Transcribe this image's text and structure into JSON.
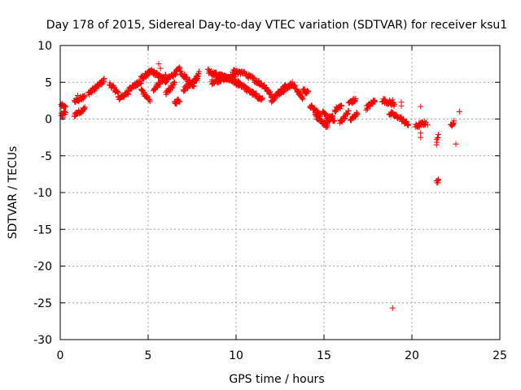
{
  "chart_data": {
    "type": "scatter",
    "title": "Day 178 of 2015, Sidereal Day-to-day VTEC variation (SDTVAR) for receiver ksu1",
    "xlabel": "GPS time / hours",
    "ylabel": "SDTVAR / TECUs",
    "xlim": [
      0,
      25
    ],
    "ylim": [
      -30,
      10
    ],
    "xticks": [
      0,
      5,
      10,
      15,
      20,
      25
    ],
    "yticks": [
      -30,
      -25,
      -20,
      -15,
      -10,
      -5,
      0,
      5,
      10
    ],
    "grid": true,
    "marker": "+",
    "color": "#ff0000",
    "segments": [
      {
        "x": [
          0.05,
          0.3
        ],
        "y": [
          1.9,
          1.5
        ]
      },
      {
        "x": [
          0.05,
          0.3
        ],
        "y": [
          0.6,
          0.9
        ]
      },
      {
        "x": [
          0.8,
          1.4
        ],
        "y": [
          2.4,
          3.0
        ]
      },
      {
        "x": [
          0.8,
          1.4
        ],
        "y": [
          0.6,
          1.4
        ]
      },
      {
        "x": [
          1.6,
          2.0
        ],
        "y": [
          3.5,
          4.2
        ]
      },
      {
        "x": [
          2.0,
          2.5
        ],
        "y": [
          4.2,
          5.3
        ]
      },
      {
        "x": [
          2.8,
          3.3
        ],
        "y": [
          4.8,
          3.5
        ]
      },
      {
        "x": [
          3.3,
          3.9
        ],
        "y": [
          2.8,
          3.6
        ]
      },
      {
        "x": [
          3.9,
          4.6
        ],
        "y": [
          4.2,
          5.0
        ]
      },
      {
        "x": [
          4.6,
          5.1
        ],
        "y": [
          4.0,
          2.5
        ]
      },
      {
        "x": [
          4.6,
          5.2
        ],
        "y": [
          5.5,
          6.5
        ]
      },
      {
        "x": [
          5.2,
          6.0
        ],
        "y": [
          6.5,
          5.2
        ]
      },
      {
        "x": [
          5.3,
          6.0
        ],
        "y": [
          4.0,
          5.8
        ]
      },
      {
        "x": [
          6.0,
          6.8
        ],
        "y": [
          5.2,
          6.8
        ]
      },
      {
        "x": [
          6.0,
          6.5
        ],
        "y": [
          3.5,
          4.8
        ]
      },
      {
        "x": [
          6.5,
          6.8
        ],
        "y": [
          2.2,
          2.6
        ]
      },
      {
        "x": [
          6.8,
          7.6
        ],
        "y": [
          6.5,
          4.5
        ]
      },
      {
        "x": [
          7.0,
          7.8
        ],
        "y": [
          4.0,
          5.5
        ]
      },
      {
        "x": [
          7.6,
          7.9
        ],
        "y": [
          5.0,
          6.2
        ]
      },
      {
        "x": [
          8.4,
          9.5
        ],
        "y": [
          6.5,
          5.5
        ]
      },
      {
        "x": [
          8.6,
          10.0
        ],
        "y": [
          5.0,
          6.0
        ]
      },
      {
        "x": [
          9.0,
          10.2
        ],
        "y": [
          6.0,
          4.8
        ]
      },
      {
        "x": [
          9.8,
          10.5
        ],
        "y": [
          6.4,
          6.2
        ]
      },
      {
        "x": [
          10.0,
          10.5
        ],
        "y": [
          4.8,
          4.5
        ]
      },
      {
        "x": [
          10.5,
          11.5
        ],
        "y": [
          4.2,
          2.6
        ]
      },
      {
        "x": [
          10.6,
          11.6
        ],
        "y": [
          6.0,
          4.5
        ]
      },
      {
        "x": [
          11.6,
          12.0
        ],
        "y": [
          4.5,
          3.2
        ]
      },
      {
        "x": [
          12.0,
          12.8
        ],
        "y": [
          2.5,
          4.5
        ]
      },
      {
        "x": [
          12.4,
          13.2
        ],
        "y": [
          3.5,
          4.8
        ]
      },
      {
        "x": [
          13.2,
          13.8
        ],
        "y": [
          4.8,
          2.8
        ]
      },
      {
        "x": [
          13.8,
          14.1
        ],
        "y": [
          4.0,
          3.5
        ]
      },
      {
        "x": [
          14.2,
          14.8
        ],
        "y": [
          1.8,
          0.5
        ]
      },
      {
        "x": [
          14.5,
          15.2
        ],
        "y": [
          0.5,
          -1.0
        ]
      },
      {
        "x": [
          14.9,
          15.6
        ],
        "y": [
          0.8,
          -0.3
        ]
      },
      {
        "x": [
          15.0,
          15.5
        ],
        "y": [
          -0.8,
          0.5
        ]
      },
      {
        "x": [
          15.6,
          16.0
        ],
        "y": [
          1.2,
          1.8
        ]
      },
      {
        "x": [
          15.9,
          16.4
        ],
        "y": [
          -0.5,
          1.0
        ]
      },
      {
        "x": [
          16.4,
          16.8
        ],
        "y": [
          2.2,
          2.6
        ]
      },
      {
        "x": [
          16.5,
          16.9
        ],
        "y": [
          -0.2,
          0.8
        ]
      },
      {
        "x": [
          17.4,
          17.9
        ],
        "y": [
          1.5,
          2.5
        ]
      },
      {
        "x": [
          18.3,
          19.0
        ],
        "y": [
          2.6,
          2.0
        ]
      },
      {
        "x": [
          18.7,
          19.2
        ],
        "y": [
          0.8,
          0.3
        ]
      },
      {
        "x": [
          19.3,
          19.8
        ],
        "y": [
          0.2,
          -0.8
        ]
      },
      {
        "x": [
          20.2,
          20.8
        ],
        "y": [
          -1.0,
          -0.5
        ]
      },
      {
        "x": [
          21.4,
          21.5
        ],
        "y": [
          -3.3,
          -2.3
        ]
      },
      {
        "x": [
          21.4,
          21.5
        ],
        "y": [
          -8.3,
          -8.6
        ]
      },
      {
        "x": [
          22.2,
          22.4
        ],
        "y": [
          -1.0,
          -0.2
        ]
      }
    ],
    "points": [
      {
        "x": 5.6,
        "y": 7.5
      },
      {
        "x": 5.7,
        "y": 6.9
      },
      {
        "x": 18.9,
        "y": 2.6
      },
      {
        "x": 19.4,
        "y": 2.3
      },
      {
        "x": 19.4,
        "y": 1.8
      },
      {
        "x": 20.5,
        "y": 1.7
      },
      {
        "x": 20.5,
        "y": -1.9
      },
      {
        "x": 20.5,
        "y": -2.5
      },
      {
        "x": 20.9,
        "y": -0.8
      },
      {
        "x": 21.4,
        "y": -2.8
      },
      {
        "x": 21.5,
        "y": -8.2
      },
      {
        "x": 22.7,
        "y": 1.0
      },
      {
        "x": 22.5,
        "y": -3.4
      },
      {
        "x": 18.9,
        "y": -25.7
      },
      {
        "x": 0.15,
        "y": 0.2
      },
      {
        "x": 1.0,
        "y": 3.2
      }
    ]
  }
}
